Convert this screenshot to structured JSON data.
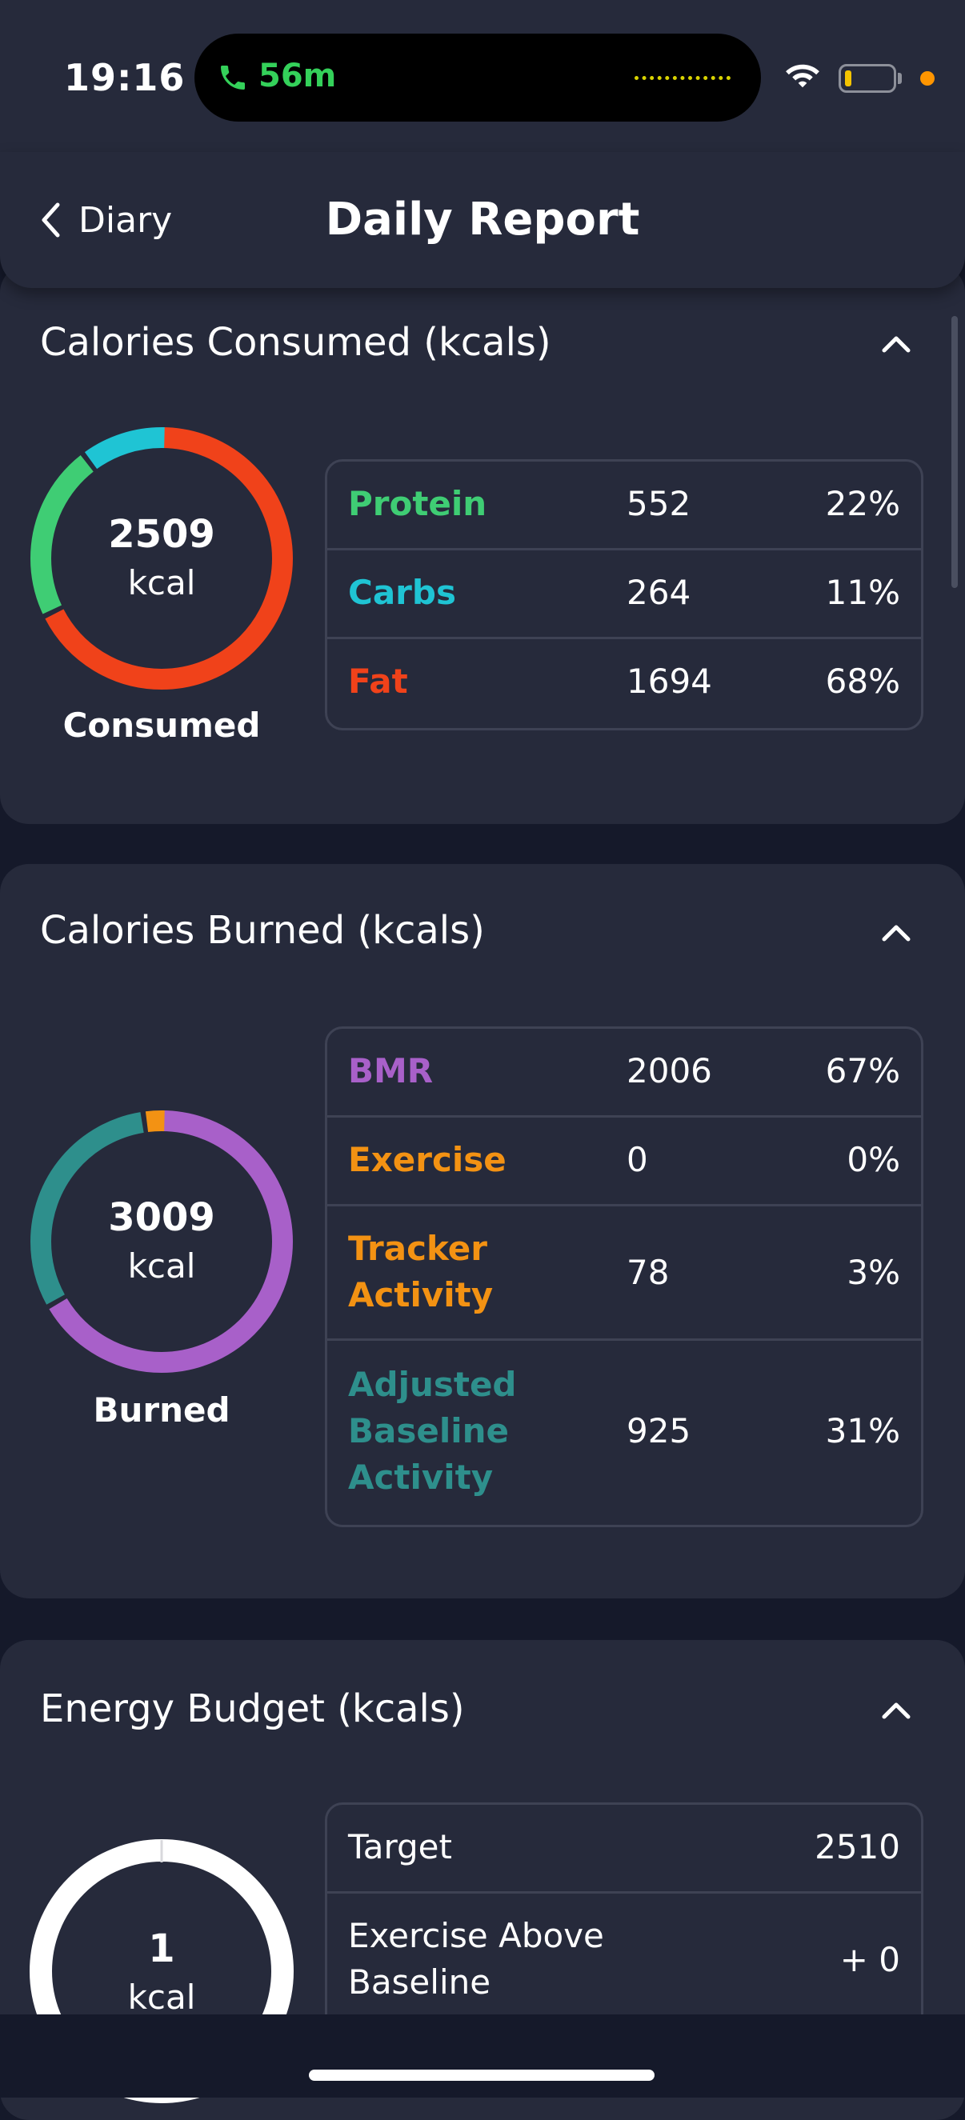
{
  "status_bar": {
    "time": "19:16",
    "call_duration": "56m",
    "call_color": "#34d15a",
    "icons": [
      "phone-icon",
      "wifi-icon",
      "battery-icon"
    ]
  },
  "header": {
    "back_label": "Diary",
    "title": "Daily Report"
  },
  "colors": {
    "protein": "#3fcd74",
    "carbs": "#1fc4d4",
    "fat": "#f0421a",
    "bmr": "#a860c9",
    "exercise": "#f39213",
    "tracker": "#f39213",
    "adjusted_baseline": "#2e8f8c",
    "background": "#15192a",
    "card": "#262a3b"
  },
  "consumed": {
    "title": "Calories Consumed (kcals)",
    "total": "2509",
    "unit": "kcal",
    "label": "Consumed",
    "rows": [
      {
        "name": "Protein",
        "value": "552",
        "pct": "22%",
        "fraction": 0.22
      },
      {
        "name": "Carbs",
        "value": "264",
        "pct": "11%",
        "fraction": 0.11
      },
      {
        "name": "Fat",
        "value": "1694",
        "pct": "68%",
        "fraction": 0.68
      }
    ]
  },
  "burned": {
    "title": "Calories Burned (kcals)",
    "total": "3009",
    "unit": "kcal",
    "label": "Burned",
    "rows": [
      {
        "name": "BMR",
        "value": "2006",
        "pct": "67%",
        "fraction": 0.67
      },
      {
        "name": "Exercise",
        "value": "0",
        "pct": "0%",
        "fraction": 0.0
      },
      {
        "name": "Tracker Activity",
        "value": "78",
        "pct": "3%",
        "fraction": 0.03
      },
      {
        "name": "Adjusted Baseline Activity",
        "value": "925",
        "pct": "31%",
        "fraction": 0.31
      }
    ]
  },
  "budget": {
    "title": "Energy Budget (kcals)",
    "total": "1",
    "unit": "kcal",
    "rows": [
      {
        "name": "Target",
        "value": "2510"
      },
      {
        "name": "Exercise Above Baseline",
        "value": "+ 0"
      }
    ]
  }
}
